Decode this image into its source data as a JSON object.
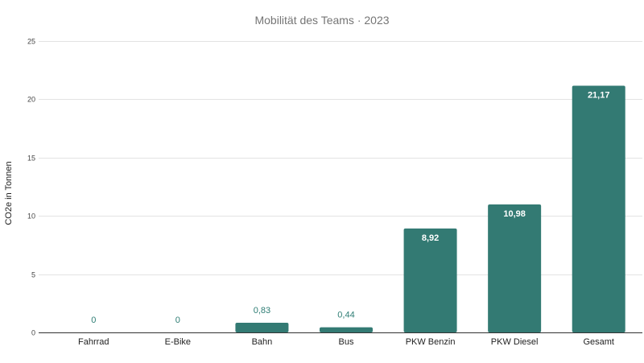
{
  "chart_data": {
    "type": "bar",
    "title": "Mobilität des Teams · 2023",
    "xlabel": "",
    "ylabel": "CO2e in Tonnen",
    "categories": [
      "Fahrrad",
      "E-Bike",
      "Bahn",
      "Bus",
      "PKW Benzin",
      "PKW Diesel",
      "Gesamt"
    ],
    "values": [
      0,
      0,
      0.83,
      0.44,
      8.92,
      10.98,
      21.17
    ],
    "data_labels": [
      "0",
      "0",
      "0,83",
      "0,44",
      "8,92",
      "10,98",
      "21,17"
    ],
    "ylim": [
      0,
      25
    ],
    "yticks": [
      "0",
      "5",
      "10",
      "15",
      "20",
      "25"
    ],
    "ytick_values": [
      0,
      5,
      10,
      15,
      20,
      25
    ],
    "grid": true,
    "legend": "none",
    "bar_color": "#337a73"
  }
}
